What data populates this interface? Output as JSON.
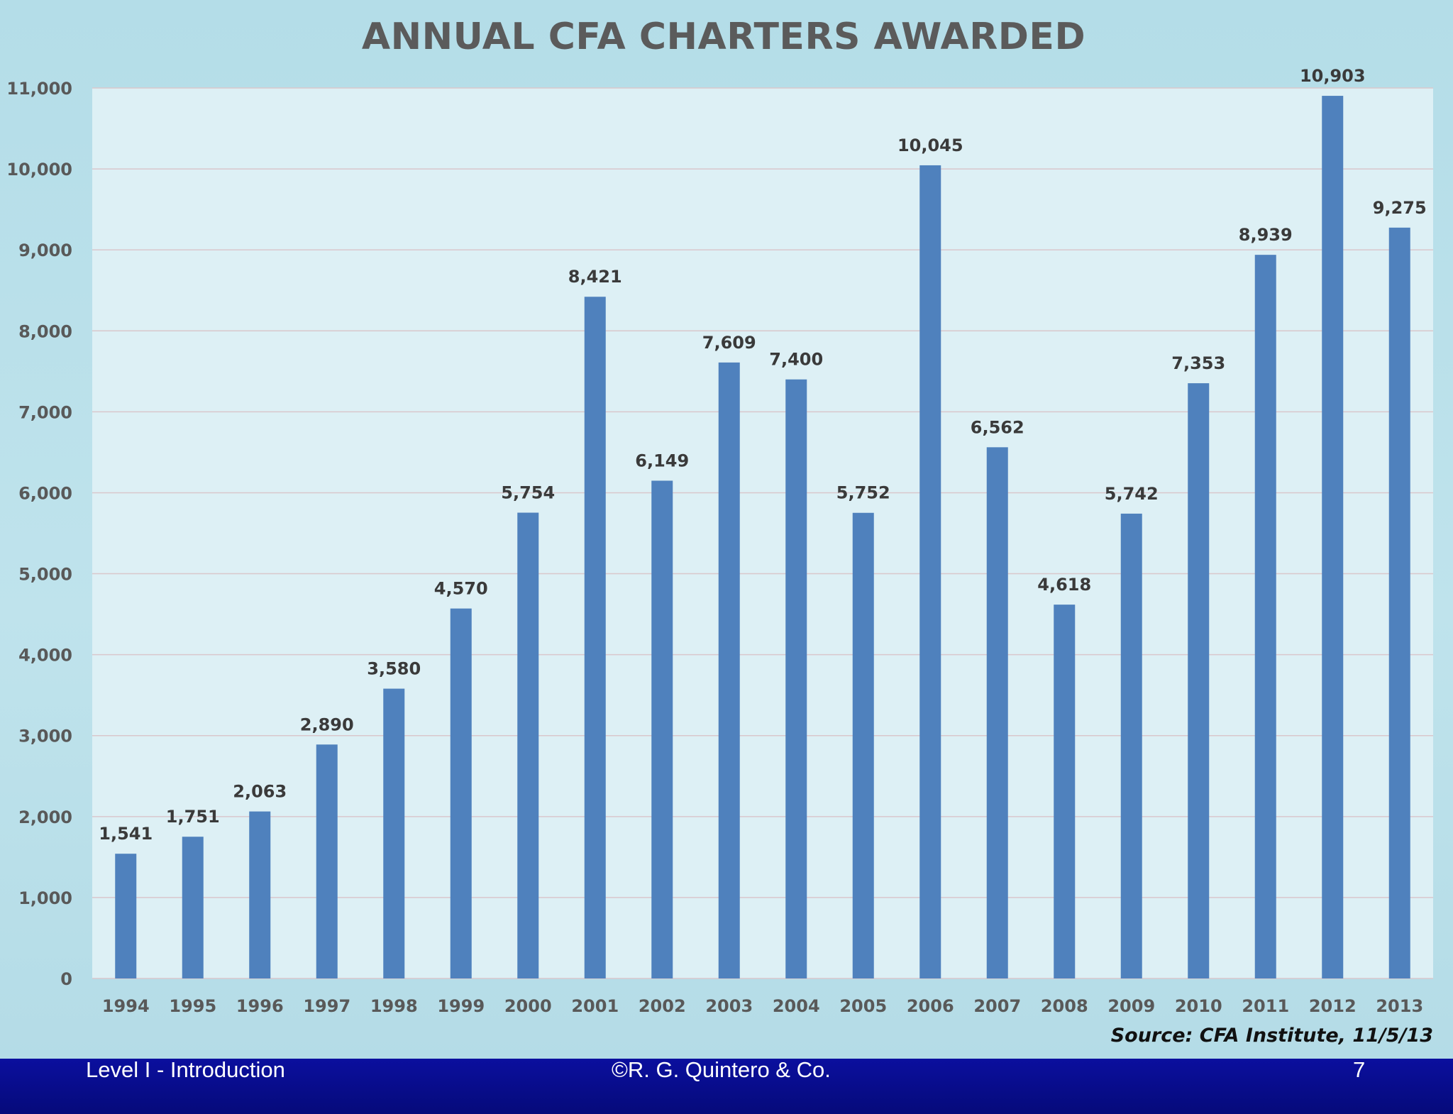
{
  "chart_data": {
    "type": "bar",
    "title": "ANNUAL CFA CHARTERS AWARDED",
    "xlabel": "",
    "ylabel": "",
    "ylim": [
      0,
      11000
    ],
    "yticks": [
      "0",
      "1,000",
      "2,000",
      "3,000",
      "4,000",
      "5,000",
      "6,000",
      "7,000",
      "8,000",
      "9,000",
      "10,000",
      "11,000"
    ],
    "ytick_values": [
      0,
      1000,
      2000,
      3000,
      4000,
      5000,
      6000,
      7000,
      8000,
      9000,
      10000,
      11000
    ],
    "grid": true,
    "legend": "none",
    "categories": [
      "1994",
      "1995",
      "1996",
      "1997",
      "1998",
      "1999",
      "2000",
      "2001",
      "2002",
      "2003",
      "2004",
      "2005",
      "2006",
      "2007",
      "2008",
      "2009",
      "2010",
      "2011",
      "2012",
      "2013"
    ],
    "values": [
      1541,
      1751,
      2063,
      2890,
      3580,
      4570,
      5754,
      8421,
      6149,
      7609,
      7400,
      5752,
      10045,
      6562,
      4618,
      5742,
      7353,
      8939,
      10903,
      9275
    ],
    "labels": [
      "1,541",
      "1,751",
      "2,063",
      "2,890",
      "3,580",
      "4,570",
      "5,754",
      "8,421",
      "6,149",
      "7,609",
      "7,400",
      "5,752",
      "10,045",
      "6,562",
      "4,618",
      "5,742",
      "7,353",
      "8,939",
      "10,903",
      "9,275"
    ],
    "bar_color": "#4f81bd",
    "plot_bg_color": "#ddf0f5",
    "grid_color": "#d9c7cc",
    "source": "Source:  CFA Institute, 11/5/13"
  },
  "footer": {
    "left": "Level I - Introduction",
    "center": "©R. G. Quintero & Co.",
    "right": "7"
  }
}
